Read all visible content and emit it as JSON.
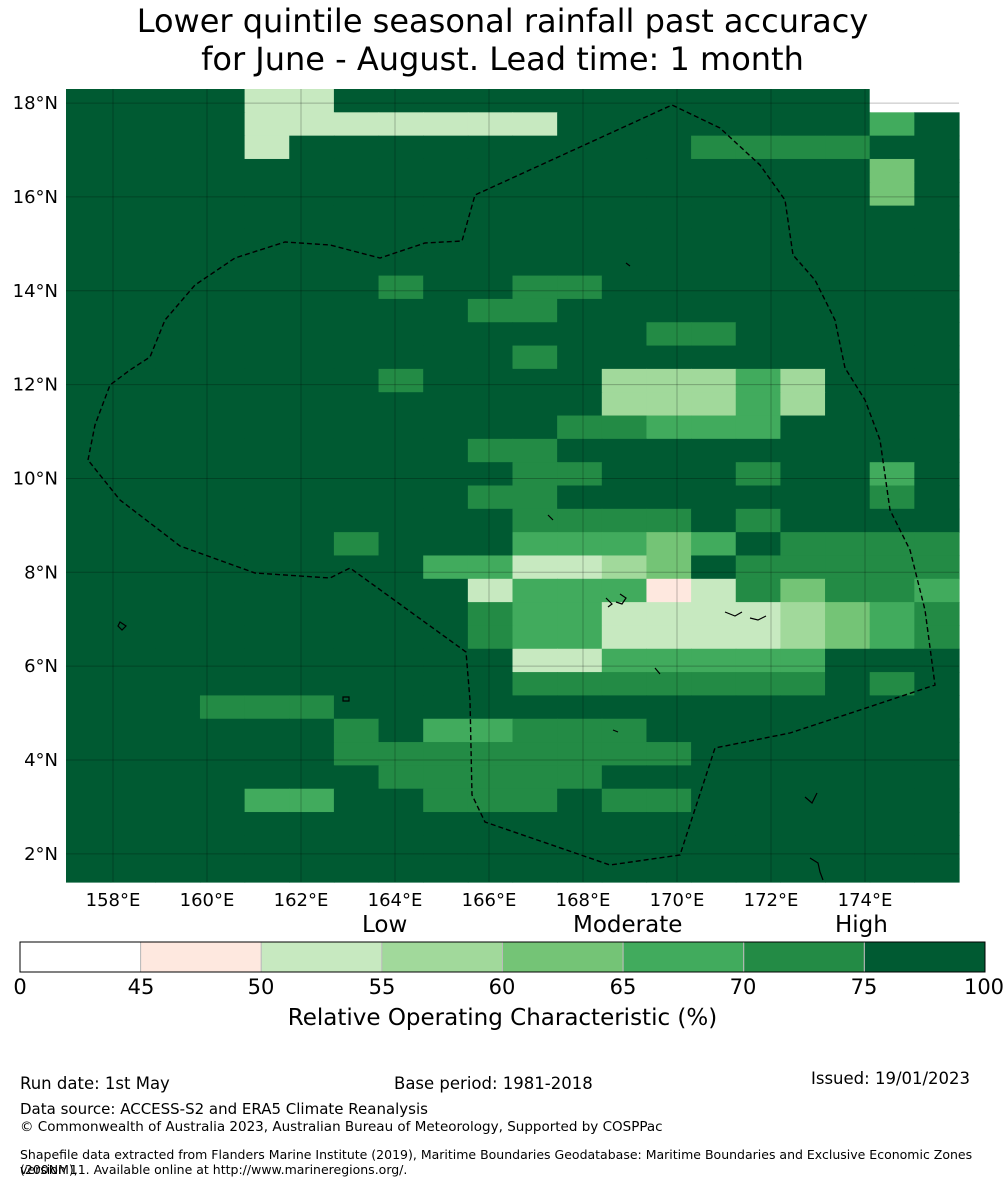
{
  "title": {
    "line1": "Lower quintile seasonal rainfall past accuracy",
    "line2": "for June - August. Lead time: 1 month"
  },
  "map": {
    "lat_labels": [
      "18°N",
      "16°N",
      "14°N",
      "12°N",
      "10°N",
      "8°N",
      "6°N",
      "4°N",
      "2°N"
    ],
    "lon_labels": [
      "158°E",
      "160°E",
      "162°E",
      "164°E",
      "166°E",
      "168°E",
      "170°E",
      "172°E",
      "174°E"
    ],
    "region": {
      "lon_min": 157.0,
      "lon_max": 176.0,
      "lat_min": 1.4,
      "lat_max": 18.3
    },
    "grid_rows_top_lat": 18.3,
    "grid_cell_deg": 0.833,
    "color_scale": [
      "#ffffff",
      "#fee8df",
      "#c7e9c0",
      "#a1d99b",
      "#74c476",
      "#41ab5d",
      "#238b45",
      "#005a32"
    ],
    "grid": [
      "77772277777777777700",
      "77772222222777777757",
      "77772777777777666677",
      "77777777777777777747",
      "77777777777777777747",
      "77777777777777777777",
      "77777777777777777777",
      "77777777777777777777",
      "77777776776677777777",
      "77777777766777777777",
      "77777777777776677777",
      "77777777776777777777",
      "77777776777733353777",
      "77777777777733353777",
      "77777777777665557777",
      "77777777766777777777",
      "77777777776677767757",
      "77777777766777777767",
      "77777777776666767777",
      "77777767775554576666",
      "77777777552234766666",
      "77777777725551264665",
      "77777777765522223456",
      "77777777765522223456",
      "77777777772255555777",
      "77777777776666666767",
      "77766677777777777777",
      "77777767556667777777",
      "77777766666666777777",
      "77777776666677777777",
      "77775577666766777777",
      "77777777777777777777",
      "77777777777777777777",
      "77777777777777777777"
    ]
  },
  "colorbar": {
    "categories": [
      "Low",
      "Moderate",
      "High"
    ],
    "ticks": [
      "0",
      "45",
      "50",
      "55",
      "60",
      "65",
      "70",
      "75",
      "100"
    ],
    "colors": [
      "#ffffff",
      "#fee8df",
      "#c7e9c0",
      "#a1d99b",
      "#74c476",
      "#41ab5d",
      "#238b45",
      "#005a32"
    ],
    "axis_label": "Relative Operating Characteristic (%)"
  },
  "footer": {
    "run_date": "Run date: 1st May",
    "base_period": "Base period: 1981-2018",
    "issued": "Issued: 19/01/2023",
    "data_source": "Data source: ACCESS-S2 and ERA5 Climate Reanalysis",
    "copyright": "© Commonwealth of Australia 2023, Australian Bureau of Meteorology, Supported by COSPPac",
    "shapefile_line1": "Shapefile data extracted from Flanders Marine Institute (2019), Maritime Boundaries Geodatabase: Maritime Boundaries and Exclusive Economic Zones (200NM),",
    "shapefile_line2": "version 11. Available online at http://www.marineregions.org/."
  }
}
